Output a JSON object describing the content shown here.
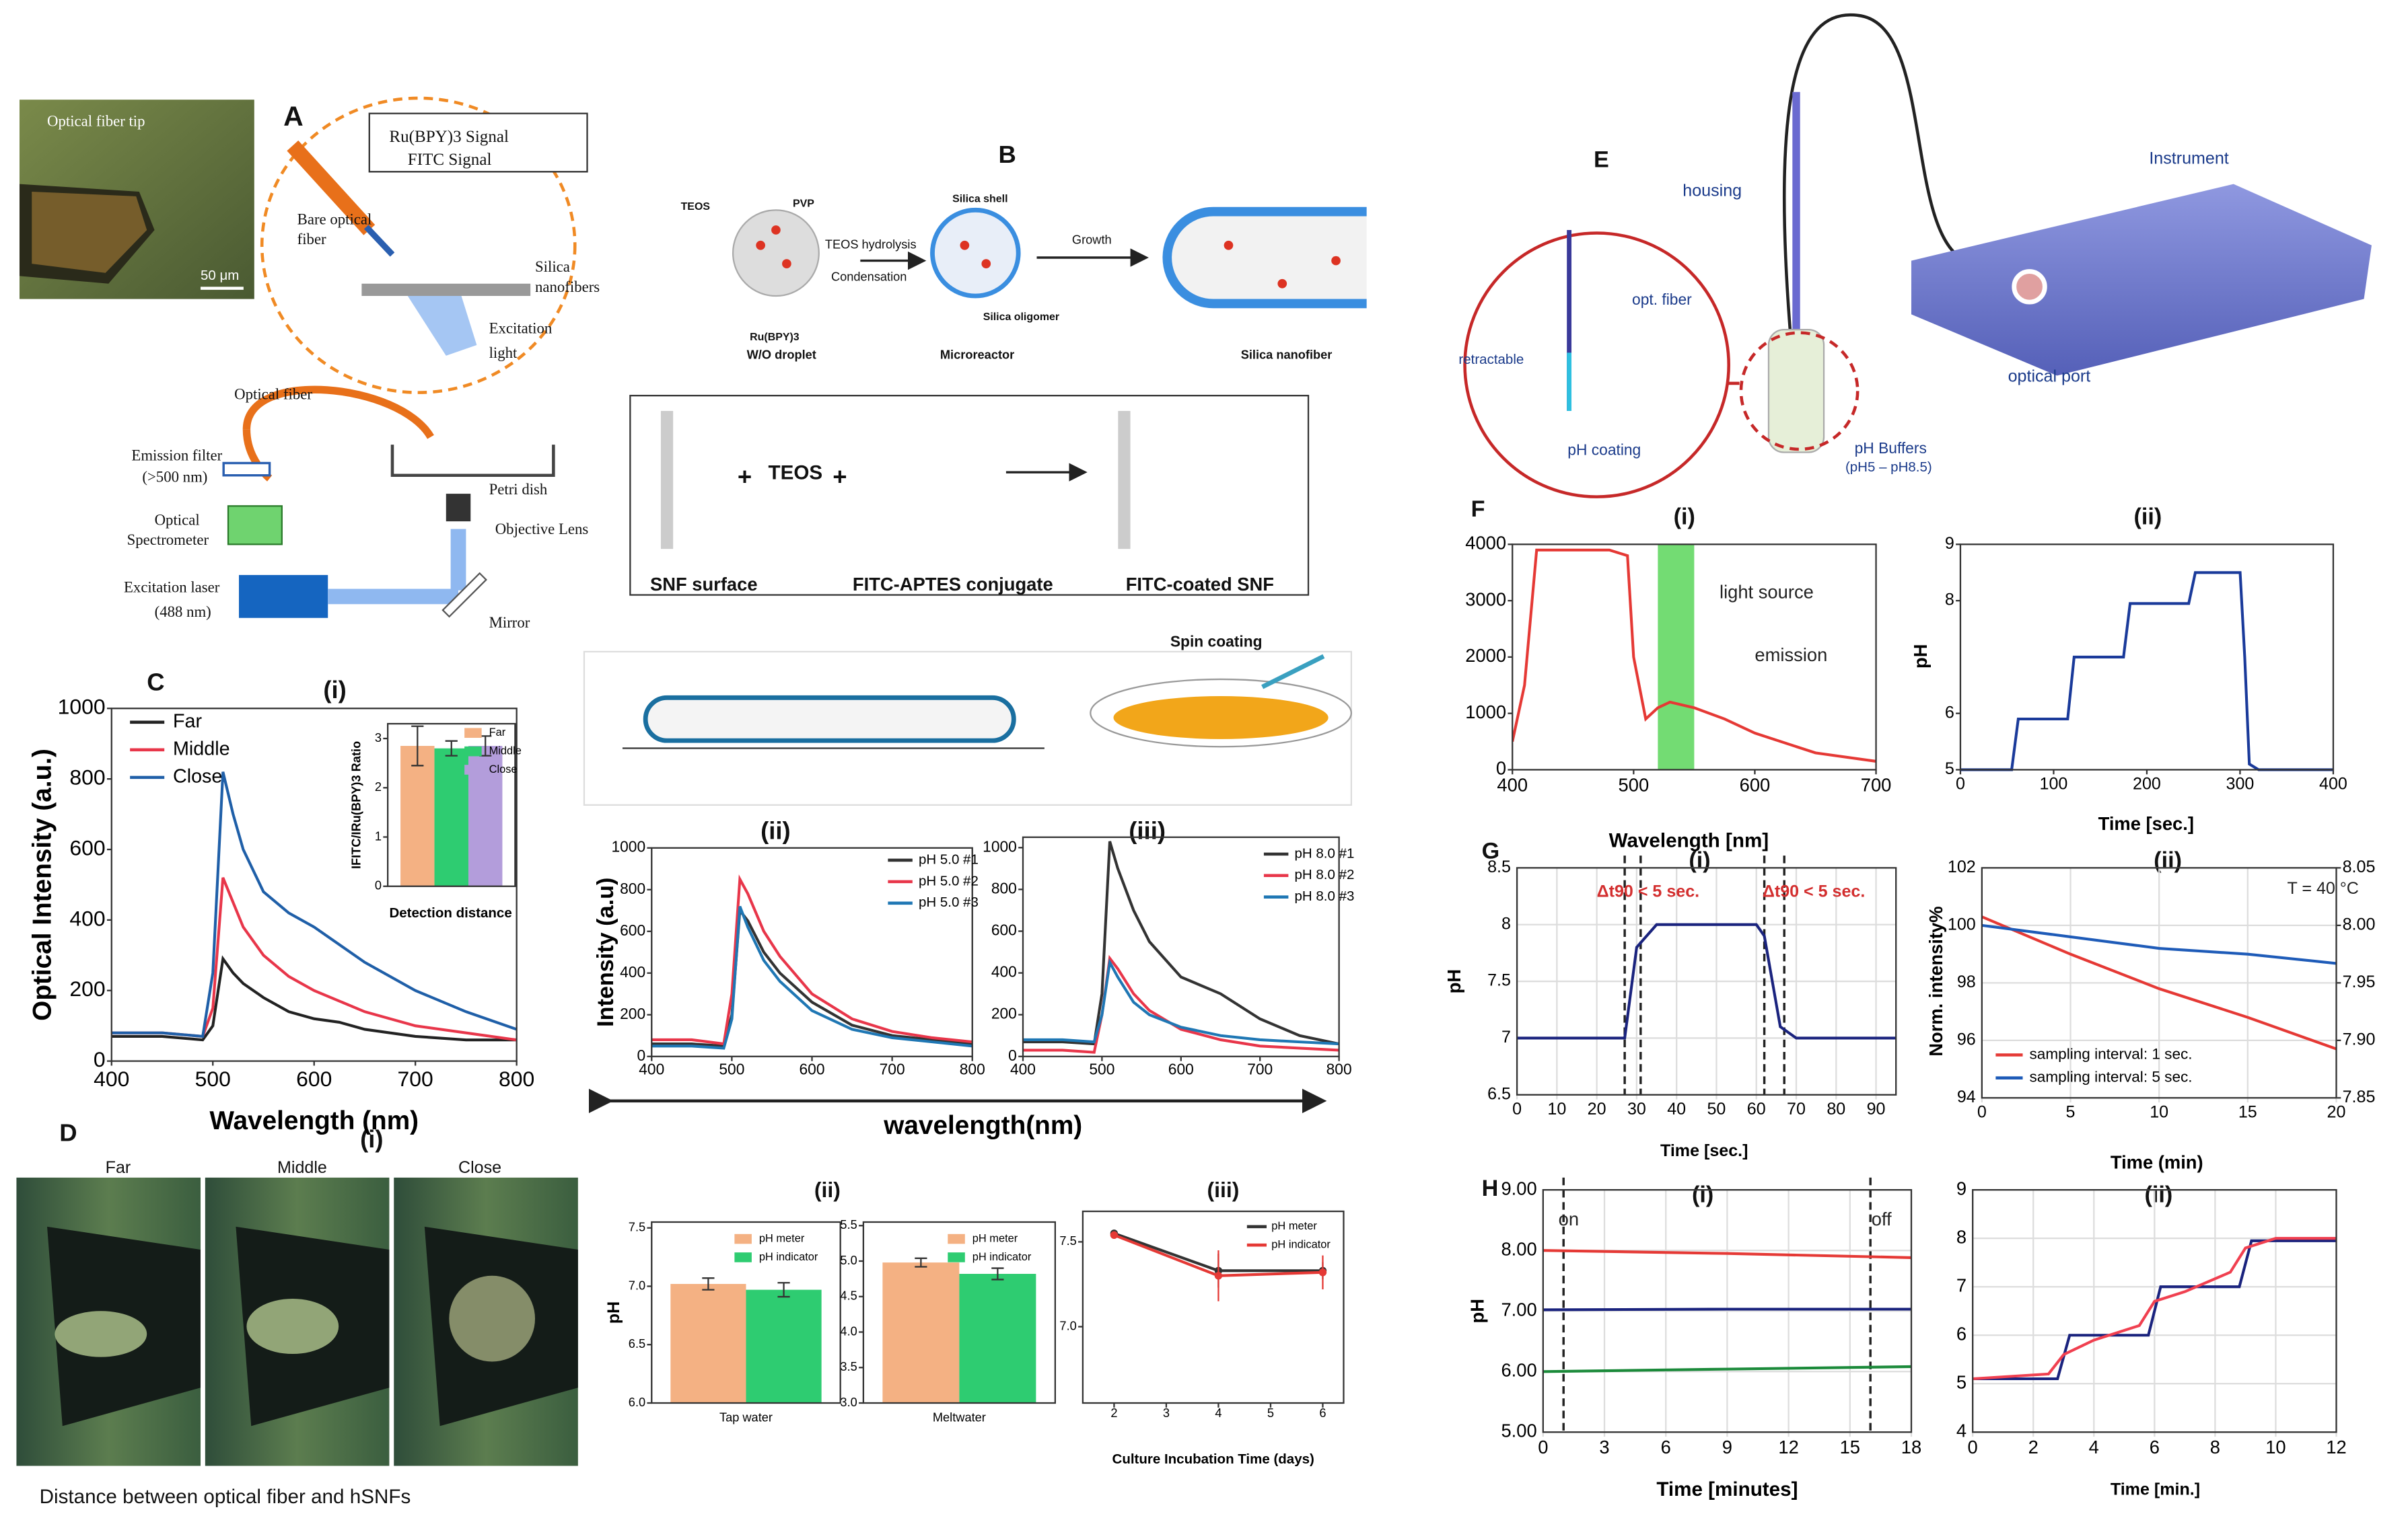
{
  "texts": [
    "A",
    "Optical fiber tip",
    "50 μm",
    "Ru(BPY)3 Signal",
    "FITC Signal",
    "Bare optical",
    "fiber",
    "Silica",
    "nanofibers",
    "Excitation",
    "light",
    "Optical fiber",
    "Emission filter",
    "(>500 nm)",
    "Optical",
    "Spectrometer",
    "Petri dish",
    "Objective Lens",
    "Excitation laser",
    "(488 nm)",
    "Mirror",
    "B",
    "TEOS",
    "PVP",
    "Ru(BPY)3",
    "TEOS hydrolysis",
    "Condensation",
    "Silica shell",
    "Growth",
    "Silica oligomer",
    "W/O droplet",
    "Microreactor",
    "Silica nanofiber",
    "+",
    "TEOS",
    "+",
    "SNF surface",
    "FITC-APTES conjugate",
    "FITC-coated SNF",
    "Spin coating",
    "C",
    "(i)",
    "(ii)",
    "(iii)",
    "D",
    "(i)",
    "Far",
    "Middle",
    "Close",
    "Distance between optical fiber and hSNFs",
    "(ii)",
    "(iii)",
    "E",
    "housing",
    "Instrument",
    "opt. fiber",
    "retractable",
    "pH coating",
    "optical port",
    "pH Buffers",
    "(pH5 – pH8.5)",
    "F",
    "(i)",
    "(ii)",
    "G",
    "(i)",
    "(ii)",
    "H",
    "(i)",
    "(ii)"
  ],
  "chart_data": [
    {
      "type": "line",
      "x": [
        400,
        450,
        490,
        500,
        510,
        520,
        530,
        550,
        575,
        600,
        625,
        650,
        700,
        750,
        800
      ],
      "xlim": [
        400,
        800
      ],
      "ylim": [
        0,
        1000
      ],
      "xticks": [
        400,
        500,
        600,
        700,
        800
      ],
      "yticks": [
        0,
        200,
        400,
        600,
        800,
        1000
      ],
      "xlabel": "Wavelength (nm)",
      "ylabel": "Optical Intensity (a.u.)",
      "series": [
        {
          "name": "Far",
          "color": "#222222",
          "values": [
            70,
            70,
            60,
            100,
            290,
            250,
            220,
            180,
            140,
            120,
            110,
            90,
            70,
            60,
            60
          ]
        },
        {
          "name": "Middle",
          "color": "#e8364a",
          "values": [
            80,
            80,
            70,
            150,
            520,
            450,
            380,
            300,
            240,
            200,
            170,
            140,
            100,
            80,
            60
          ]
        },
        {
          "name": "Close",
          "color": "#1f5fa8",
          "values": [
            80,
            80,
            70,
            250,
            820,
            700,
            600,
            480,
            420,
            380,
            330,
            280,
            200,
            140,
            90
          ]
        }
      ]
    },
    {
      "type": "bar",
      "ylim": [
        0,
        3.3
      ],
      "yticks": [
        0,
        1,
        2,
        3
      ],
      "xlabel": "Detection distance",
      "ylabel": "IFITC/IRu(BPY)3 Ratio",
      "series": [
        {
          "name": "Far",
          "color": "#f4b183",
          "values": [
            2.85
          ],
          "errors": [
            0.4
          ]
        },
        {
          "name": "Middle",
          "color": "#2ecc71",
          "values": [
            2.8
          ],
          "errors": [
            0.15
          ]
        },
        {
          "name": "Close",
          "color": "#b39ddb",
          "values": [
            2.85
          ],
          "errors": [
            0.2
          ]
        }
      ]
    },
    {
      "type": "line",
      "x": [
        400,
        450,
        490,
        500,
        510,
        520,
        540,
        560,
        600,
        650,
        700,
        750,
        800
      ],
      "xlim": [
        400,
        800
      ],
      "ylim": [
        0,
        1000
      ],
      "xticks": [
        400,
        500,
        600,
        700,
        800
      ],
      "yticks": [
        0,
        200,
        400,
        600,
        800,
        1000
      ],
      "xlabel": "wavelength(nm)",
      "ylabel": "Intensity (a.u)",
      "series": [
        {
          "name": "pH 5.0 #1",
          "color": "#333333",
          "values": [
            60,
            60,
            50,
            200,
            700,
            650,
            500,
            400,
            260,
            150,
            100,
            80,
            60
          ]
        },
        {
          "name": "pH 5.0 #2",
          "color": "#e8364a",
          "values": [
            80,
            80,
            60,
            300,
            850,
            780,
            600,
            480,
            300,
            180,
            120,
            90,
            70
          ]
        },
        {
          "name": "pH 5.0 #3",
          "color": "#1f77b4",
          "values": [
            50,
            50,
            40,
            180,
            720,
            620,
            460,
            360,
            220,
            130,
            90,
            70,
            50
          ]
        }
      ]
    },
    {
      "type": "line",
      "x": [
        400,
        450,
        490,
        500,
        510,
        520,
        540,
        560,
        600,
        650,
        700,
        750,
        800
      ],
      "xlim": [
        400,
        800
      ],
      "ylim": [
        0,
        1050
      ],
      "xticks": [
        400,
        500,
        600,
        700,
        800
      ],
      "yticks": [
        0,
        200,
        400,
        600,
        800,
        1000
      ],
      "series": [
        {
          "name": "pH 8.0 #1",
          "color": "#333333",
          "values": [
            70,
            70,
            60,
            300,
            1030,
            900,
            700,
            550,
            380,
            300,
            180,
            100,
            60
          ]
        },
        {
          "name": "pH 8.0 #2",
          "color": "#e8364a",
          "values": [
            30,
            30,
            20,
            200,
            470,
            420,
            300,
            220,
            130,
            80,
            50,
            40,
            30
          ]
        },
        {
          "name": "pH 8.0 #3",
          "color": "#1f77b4",
          "values": [
            80,
            80,
            70,
            200,
            450,
            380,
            260,
            200,
            140,
            100,
            80,
            70,
            60
          ]
        }
      ]
    },
    {
      "type": "bar",
      "categories": [
        "Tap water"
      ],
      "ylim": [
        6.0,
        7.55
      ],
      "yticks": [
        {
          "value": 6,
          "label": "6.0"
        },
        6.5,
        {
          "value": 7,
          "label": "7.0"
        },
        7.5
      ],
      "ylabel": "pH",
      "series": [
        {
          "name": "pH meter",
          "color": "#f4b183",
          "values": [
            7.02
          ],
          "errors": [
            0.05
          ]
        },
        {
          "name": "pH indicator",
          "color": "#2ecc71",
          "values": [
            6.97
          ],
          "errors": [
            0.06
          ]
        }
      ]
    },
    {
      "type": "bar",
      "categories": [
        "Meltwater"
      ],
      "ylim": [
        3.0,
        5.55
      ],
      "yticks": [
        {
          "value": 3,
          "label": "3.0"
        },
        3.5,
        {
          "value": 4,
          "label": "4.0"
        },
        4.5,
        {
          "value": 5,
          "label": "5.0"
        },
        5.5
      ],
      "series": [
        {
          "name": "pH meter",
          "color": "#f4b183",
          "values": [
            4.98
          ],
          "errors": [
            0.06
          ]
        },
        {
          "name": "pH indicator",
          "color": "#2ecc71",
          "values": [
            4.82
          ],
          "errors": [
            0.08
          ]
        }
      ]
    },
    {
      "type": "line",
      "markers": true,
      "x": [
        2,
        4,
        6
      ],
      "xlim": [
        1.4,
        6.4
      ],
      "ylim": [
        6.55,
        7.68
      ],
      "xticks": [
        2,
        3,
        4,
        5,
        6
      ],
      "yticks": [
        {
          "value": 7,
          "label": "7.0"
        },
        7.5
      ],
      "xlabel": "Culture Incubation Time (days)",
      "series": [
        {
          "name": "pH meter",
          "color": "#333333",
          "values": [
            7.55,
            7.33,
            7.33
          ],
          "errors": [
            0.02,
            0.1,
            0.05
          ]
        },
        {
          "name": "pH indicator",
          "color": "#e53935",
          "values": [
            7.54,
            7.3,
            7.32
          ],
          "errors": [
            0.02,
            0.15,
            0.1
          ]
        }
      ]
    },
    {
      "type": "line",
      "x": [
        400,
        410,
        420,
        440,
        480,
        495,
        500,
        510,
        520,
        530,
        550,
        575,
        600,
        650,
        700
      ],
      "xlim": [
        400,
        700
      ],
      "ylim": [
        0,
        4000
      ],
      "xticks": [
        400,
        500,
        600,
        700
      ],
      "yticks": [
        0,
        1000,
        2000,
        3000,
        4000
      ],
      "xlabel": "Wavelength [nm]",
      "band": [
        520,
        550
      ],
      "band_color": "#5ad65a",
      "annotations": [
        "light source",
        "emission"
      ],
      "series": [
        {
          "color": "#e53935",
          "values": [
            500,
            1500,
            3900,
            3900,
            3900,
            3800,
            2000,
            900,
            1100,
            1200,
            1100,
            900,
            650,
            300,
            150
          ]
        }
      ]
    },
    {
      "type": "line",
      "x": [
        0,
        55,
        62,
        115,
        122,
        175,
        182,
        245,
        252,
        300,
        305,
        310,
        320,
        400
      ],
      "xlim": [
        0,
        400
      ],
      "ylim": [
        5,
        9
      ],
      "xticks": [
        0,
        100,
        200,
        300,
        400
      ],
      "yticks": [
        5,
        6,
        8,
        9
      ],
      "xlabel": "Time [sec.]",
      "ylabel": "pH",
      "series": [
        {
          "color": "#1a3a9a",
          "values": [
            5,
            5,
            5.9,
            5.9,
            7,
            7,
            7.95,
            7.95,
            8.5,
            8.5,
            7,
            5.1,
            5,
            5
          ]
        }
      ]
    },
    {
      "type": "line",
      "grid": true,
      "x": [
        0,
        27,
        30,
        35,
        60,
        62,
        66,
        70,
        95
      ],
      "xlim": [
        0,
        95
      ],
      "ylim": [
        6.5,
        8.5
      ],
      "xticks": [
        0,
        10,
        20,
        30,
        40,
        50,
        60,
        70,
        80,
        90
      ],
      "yticks": [
        6.5,
        7,
        7.5,
        8,
        8.5
      ],
      "xlabel": "Time [sec.]",
      "ylabel": "pH",
      "vlines": [
        27,
        31,
        62,
        67
      ],
      "annotations": [
        "Δt90 < 5 sec.",
        "Δt90 < 5 sec."
      ],
      "annotation_color": "#d32f2f",
      "series": [
        {
          "color": "#1a237e",
          "values": [
            7,
            7,
            7.8,
            8,
            8,
            7.9,
            7.1,
            7,
            7
          ]
        }
      ]
    },
    {
      "type": "line",
      "grid": true,
      "x": [
        0,
        5,
        10,
        15,
        20
      ],
      "xlim": [
        0,
        20
      ],
      "ylim": [
        94,
        102
      ],
      "y2lim": [
        7.85,
        8.05
      ],
      "xticks": [
        0,
        5,
        10,
        15,
        20
      ],
      "yticks": [
        94,
        96,
        98,
        100,
        102
      ],
      "y2ticks": [
        7.85,
        {
          "value": 7.9,
          "label": "7.90"
        },
        7.95,
        {
          "value": 8,
          "label": "8.00"
        },
        8.05
      ],
      "xlabel": "Time (min)",
      "ylabel": "Norm. intensity%",
      "annotations": [
        "T = 40 °C"
      ],
      "series": [
        {
          "name": "sampling interval: 1 sec.",
          "color": "#e53935",
          "values": [
            100.3,
            99,
            97.8,
            96.8,
            95.7
          ]
        },
        {
          "name": "sampling interval: 5 sec.",
          "color": "#1e5bb8",
          "axis": "y2",
          "values": [
            8.0,
            7.99,
            7.98,
            7.975,
            7.967
          ]
        }
      ]
    },
    {
      "type": "line",
      "grid": true,
      "x": [
        0,
        9,
        18
      ],
      "xlim": [
        0,
        18
      ],
      "ylim": [
        5,
        9
      ],
      "xticks": [
        0,
        3,
        6,
        9,
        12,
        15,
        18
      ],
      "yticks": [
        {
          "value": 5,
          "label": "5.00"
        },
        {
          "value": 6,
          "label": "6.00"
        },
        {
          "value": 7,
          "label": "7.00"
        },
        {
          "value": 8,
          "label": "8.00"
        },
        {
          "value": 9,
          "label": "9.00"
        }
      ],
      "xlabel": "Time [minutes]",
      "ylabel": "pH",
      "vlines": [
        1,
        16
      ],
      "annotations": [
        "on",
        "off"
      ],
      "series": [
        {
          "color": "#e53935",
          "values": [
            8.0,
            7.95,
            7.88
          ]
        },
        {
          "color": "#1a237e",
          "values": [
            7.02,
            7.03,
            7.03
          ]
        },
        {
          "color": "#1b8a3a",
          "values": [
            6.0,
            6.04,
            6.08
          ]
        }
      ]
    },
    {
      "type": "line",
      "grid": true,
      "xlim": [
        0,
        12
      ],
      "ylim": [
        4,
        9
      ],
      "xticks": [
        0,
        2,
        4,
        6,
        8,
        10,
        12
      ],
      "yticks": [
        4,
        5,
        6,
        7,
        8,
        9
      ],
      "xlabel": "Time [min.]",
      "series": [
        {
          "color": "#1a237e",
          "x": [
            0,
            2.8,
            3.2,
            5.8,
            6.2,
            8.8,
            9.2,
            12
          ],
          "values": [
            5.1,
            5.1,
            6,
            6,
            7,
            7,
            7.95,
            7.95
          ]
        },
        {
          "color": "#f04050",
          "x": [
            0,
            2.5,
            3,
            4,
            5.5,
            6,
            7,
            8.5,
            9,
            10,
            12
          ],
          "values": [
            5.1,
            5.2,
            5.6,
            5.9,
            6.2,
            6.7,
            6.9,
            7.3,
            7.8,
            8,
            8
          ]
        }
      ]
    }
  ]
}
